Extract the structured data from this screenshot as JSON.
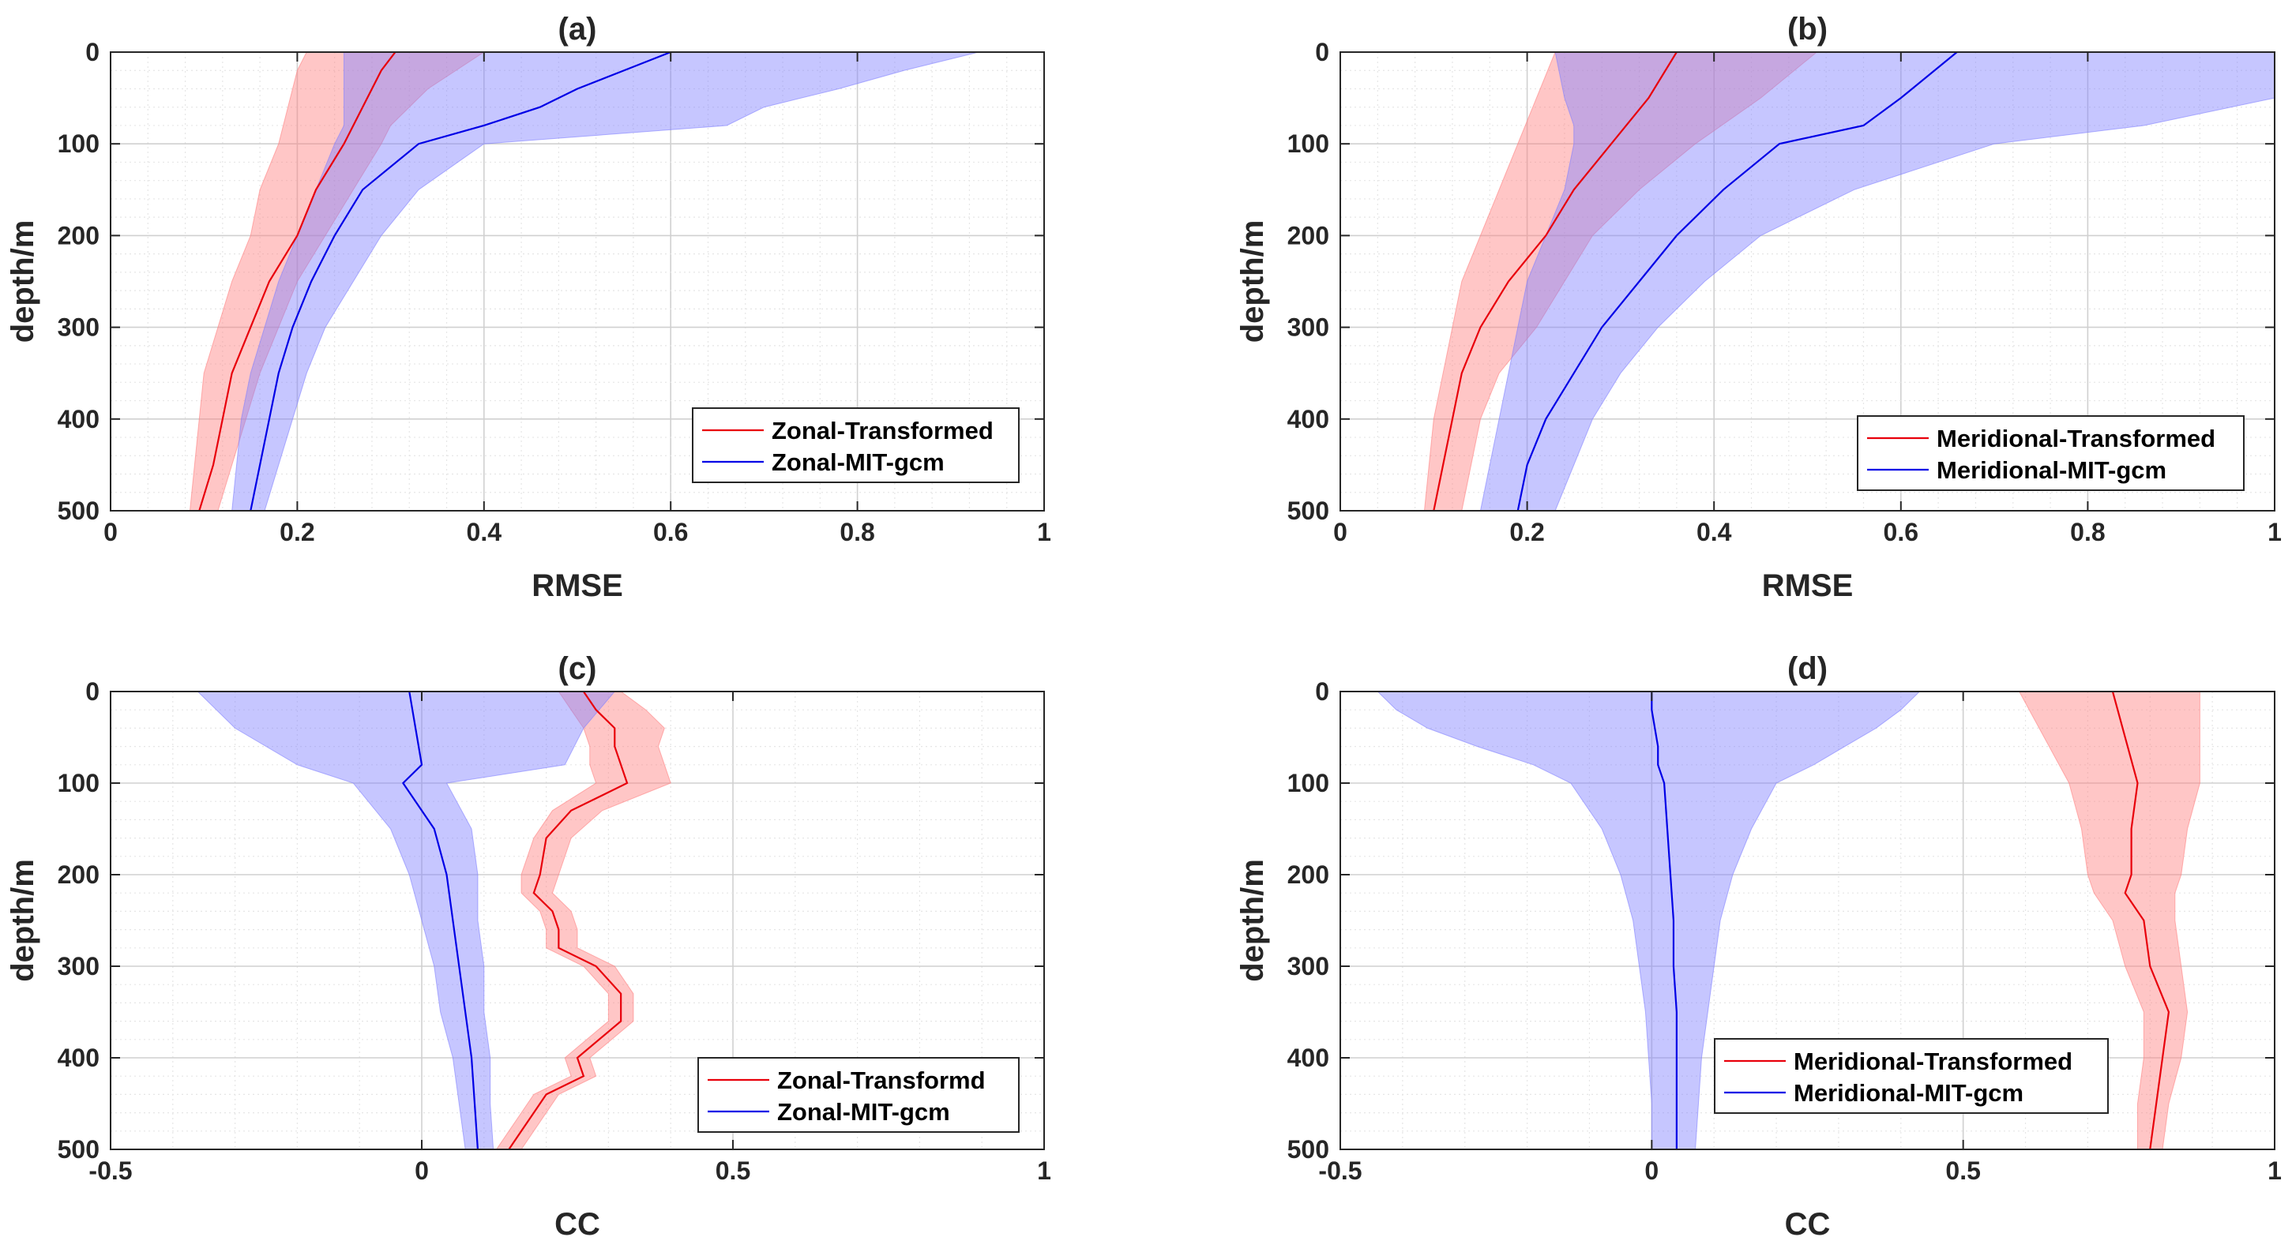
{
  "chart_data": [
    {
      "id": "a",
      "type": "line",
      "title": "(a)",
      "xlabel": "RMSE",
      "ylabel": "depth/m",
      "xlim": [
        0,
        1
      ],
      "ylim": [
        0,
        500
      ],
      "y_reversed": true,
      "xticks": [
        0,
        0.2,
        0.4,
        0.6,
        0.8,
        1
      ],
      "xtick_labels": [
        "0",
        "0.2",
        "0.4",
        "0.6",
        "0.8",
        "1"
      ],
      "yticks": [
        0,
        100,
        200,
        300,
        400,
        500
      ],
      "ytick_labels": [
        "0",
        "100",
        "200",
        "300",
        "400",
        "500"
      ],
      "grid": true,
      "legend_position": "bottom-right",
      "series": [
        {
          "name": "Zonal-Transformed",
          "color": "#e8000b",
          "band_color": "#ff8080",
          "depth": [
            0,
            20,
            40,
            60,
            80,
            100,
            150,
            200,
            250,
            300,
            350,
            400,
            450,
            500
          ],
          "mean": [
            0.305,
            0.29,
            0.28,
            0.27,
            0.26,
            0.25,
            0.22,
            0.2,
            0.17,
            0.15,
            0.13,
            0.12,
            0.11,
            0.095
          ],
          "lower": [
            0.21,
            0.2,
            0.195,
            0.19,
            0.185,
            0.18,
            0.16,
            0.15,
            0.13,
            0.115,
            0.1,
            0.095,
            0.09,
            0.085
          ],
          "upper": [
            0.4,
            0.37,
            0.34,
            0.32,
            0.3,
            0.29,
            0.26,
            0.23,
            0.2,
            0.18,
            0.16,
            0.145,
            0.13,
            0.115
          ]
        },
        {
          "name": "Zonal-MIT-gcm",
          "color": "#0000e6",
          "band_color": "#8080ff",
          "depth": [
            0,
            20,
            40,
            60,
            80,
            100,
            150,
            200,
            250,
            300,
            350,
            400,
            450,
            500
          ],
          "mean": [
            0.6,
            0.55,
            0.5,
            0.46,
            0.4,
            0.33,
            0.27,
            0.24,
            0.215,
            0.195,
            0.18,
            0.17,
            0.16,
            0.15
          ],
          "lower": [
            0.25,
            0.25,
            0.25,
            0.25,
            0.25,
            0.24,
            0.22,
            0.2,
            0.18,
            0.165,
            0.15,
            0.14,
            0.135,
            0.13
          ],
          "upper": [
            0.93,
            0.85,
            0.78,
            0.7,
            0.66,
            0.4,
            0.33,
            0.29,
            0.26,
            0.23,
            0.21,
            0.195,
            0.18,
            0.165
          ]
        }
      ]
    },
    {
      "id": "b",
      "type": "line",
      "title": "(b)",
      "xlabel": "RMSE",
      "ylabel": "depth/m",
      "xlim": [
        0,
        1
      ],
      "ylim": [
        0,
        500
      ],
      "y_reversed": true,
      "xticks": [
        0,
        0.2,
        0.4,
        0.6,
        0.8,
        1
      ],
      "xtick_labels": [
        "0",
        "0.2",
        "0.4",
        "0.6",
        "0.8",
        "1"
      ],
      "yticks": [
        0,
        100,
        200,
        300,
        400,
        500
      ],
      "ytick_labels": [
        "0",
        "100",
        "200",
        "300",
        "400",
        "500"
      ],
      "grid": true,
      "legend_position": "bottom-right",
      "series": [
        {
          "name": "Meridional-Transformed",
          "color": "#e8000b",
          "band_color": "#ff8080",
          "depth": [
            0,
            50,
            100,
            150,
            200,
            250,
            300,
            350,
            400,
            450,
            500
          ],
          "mean": [
            0.36,
            0.33,
            0.29,
            0.25,
            0.22,
            0.18,
            0.15,
            0.13,
            0.12,
            0.11,
            0.1
          ],
          "lower": [
            0.23,
            0.21,
            0.19,
            0.17,
            0.15,
            0.13,
            0.12,
            0.11,
            0.1,
            0.095,
            0.09
          ],
          "upper": [
            0.51,
            0.45,
            0.38,
            0.32,
            0.27,
            0.24,
            0.21,
            0.17,
            0.15,
            0.14,
            0.13
          ]
        },
        {
          "name": "Meridional-MIT-gcm",
          "color": "#0000e6",
          "band_color": "#8080ff",
          "depth": [
            0,
            50,
            80,
            100,
            150,
            200,
            250,
            300,
            350,
            400,
            450,
            500
          ],
          "mean": [
            0.66,
            0.6,
            0.56,
            0.47,
            0.41,
            0.36,
            0.32,
            0.28,
            0.25,
            0.22,
            0.2,
            0.19
          ],
          "lower": [
            0.23,
            0.24,
            0.25,
            0.25,
            0.24,
            0.22,
            0.2,
            0.19,
            0.18,
            0.17,
            0.16,
            0.15
          ],
          "upper": [
            1.0,
            1.0,
            0.86,
            0.7,
            0.55,
            0.45,
            0.39,
            0.34,
            0.3,
            0.27,
            0.25,
            0.23
          ]
        }
      ]
    },
    {
      "id": "c",
      "type": "line",
      "title": "(c)",
      "xlabel": "CC",
      "ylabel": "depth/m",
      "xlim": [
        -0.5,
        1
      ],
      "ylim": [
        0,
        500
      ],
      "y_reversed": true,
      "xticks": [
        -0.5,
        0,
        0.5,
        1
      ],
      "xtick_labels": [
        "-0.5",
        "0",
        "0.5",
        "1"
      ],
      "yticks": [
        0,
        100,
        200,
        300,
        400,
        500
      ],
      "ytick_labels": [
        "0",
        "100",
        "200",
        "300",
        "400",
        "500"
      ],
      "grid": true,
      "legend_position": "bottom-right",
      "series": [
        {
          "name": "Zonal-Transformd",
          "color": "#e8000b",
          "band_color": "#ff8080",
          "depth": [
            0,
            20,
            40,
            60,
            80,
            100,
            130,
            160,
            200,
            220,
            240,
            260,
            280,
            300,
            330,
            360,
            400,
            420,
            440,
            460,
            480,
            500
          ],
          "mean": [
            0.26,
            0.28,
            0.31,
            0.31,
            0.32,
            0.33,
            0.24,
            0.2,
            0.19,
            0.18,
            0.21,
            0.22,
            0.22,
            0.28,
            0.32,
            0.32,
            0.25,
            0.26,
            0.2,
            0.18,
            0.16,
            0.14
          ],
          "lower": [
            0.22,
            0.24,
            0.26,
            0.27,
            0.27,
            0.28,
            0.21,
            0.18,
            0.16,
            0.16,
            0.19,
            0.2,
            0.2,
            0.26,
            0.3,
            0.3,
            0.23,
            0.24,
            0.18,
            0.16,
            0.14,
            0.12
          ],
          "upper": [
            0.32,
            0.36,
            0.39,
            0.38,
            0.39,
            0.4,
            0.29,
            0.24,
            0.22,
            0.21,
            0.24,
            0.25,
            0.25,
            0.31,
            0.34,
            0.34,
            0.27,
            0.28,
            0.22,
            0.2,
            0.18,
            0.16
          ]
        },
        {
          "name": "Zonal-MIT-gcm",
          "color": "#0000e6",
          "band_color": "#8080ff",
          "depth": [
            0,
            40,
            80,
            100,
            150,
            200,
            250,
            300,
            350,
            400,
            450,
            500
          ],
          "mean": [
            -0.02,
            -0.01,
            0.0,
            -0.03,
            0.02,
            0.04,
            0.05,
            0.06,
            0.07,
            0.08,
            0.085,
            0.09
          ],
          "lower": [
            -0.36,
            -0.3,
            -0.2,
            -0.11,
            -0.05,
            -0.02,
            0.0,
            0.02,
            0.03,
            0.05,
            0.06,
            0.07
          ],
          "upper": [
            0.31,
            0.26,
            0.23,
            0.04,
            0.08,
            0.09,
            0.09,
            0.1,
            0.1,
            0.11,
            0.11,
            0.115
          ]
        }
      ]
    },
    {
      "id": "d",
      "type": "line",
      "title": "(d)",
      "xlabel": "CC",
      "ylabel": "depth/m",
      "xlim": [
        -0.5,
        1
      ],
      "ylim": [
        0,
        500
      ],
      "y_reversed": true,
      "xticks": [
        -0.5,
        0,
        0.5,
        1
      ],
      "xtick_labels": [
        "-0.5",
        "0",
        "0.5",
        "1"
      ],
      "yticks": [
        0,
        100,
        200,
        300,
        400,
        500
      ],
      "ytick_labels": [
        "0",
        "100",
        "200",
        "300",
        "400",
        "500"
      ],
      "grid": true,
      "legend_position": "bottom-right",
      "series": [
        {
          "name": "Meridional-Transformed",
          "color": "#e8000b",
          "band_color": "#ff8080",
          "depth": [
            0,
            50,
            100,
            150,
            200,
            220,
            250,
            300,
            350,
            400,
            450,
            500
          ],
          "mean": [
            0.74,
            0.76,
            0.78,
            0.77,
            0.77,
            0.76,
            0.79,
            0.8,
            0.83,
            0.82,
            0.81,
            0.8
          ],
          "lower": [
            0.59,
            0.63,
            0.67,
            0.69,
            0.7,
            0.71,
            0.74,
            0.76,
            0.79,
            0.79,
            0.78,
            0.78
          ],
          "upper": [
            0.88,
            0.88,
            0.88,
            0.86,
            0.85,
            0.84,
            0.84,
            0.85,
            0.86,
            0.85,
            0.83,
            0.82
          ]
        },
        {
          "name": "Meridional-MIT-gcm",
          "color": "#0000e6",
          "band_color": "#8080ff",
          "depth": [
            0,
            20,
            40,
            60,
            80,
            100,
            150,
            200,
            250,
            300,
            350,
            400,
            450,
            500
          ],
          "mean": [
            0.0,
            0.0,
            0.005,
            0.01,
            0.01,
            0.02,
            0.025,
            0.03,
            0.035,
            0.035,
            0.04,
            0.04,
            0.04,
            0.04
          ],
          "lower": [
            -0.44,
            -0.41,
            -0.36,
            -0.28,
            -0.19,
            -0.13,
            -0.08,
            -0.05,
            -0.03,
            -0.02,
            -0.01,
            -0.005,
            0.0,
            0.0
          ],
          "upper": [
            0.43,
            0.4,
            0.36,
            0.31,
            0.26,
            0.2,
            0.16,
            0.13,
            0.11,
            0.1,
            0.09,
            0.08,
            0.075,
            0.07
          ]
        }
      ]
    }
  ]
}
